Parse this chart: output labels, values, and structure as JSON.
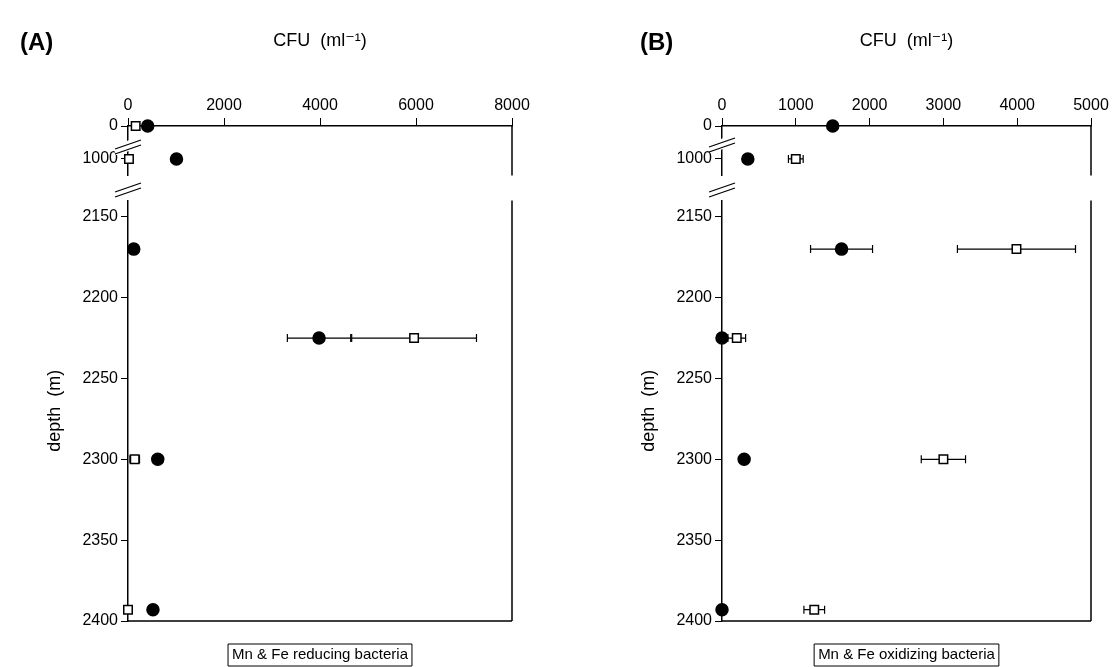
{
  "chart_data": [
    {
      "type": "scatter",
      "title": "(A)",
      "xlabel": "CFU  (ml⁻¹)",
      "xlim": [
        0,
        8000
      ],
      "xticks": [
        0,
        2000,
        4000,
        6000,
        8000
      ],
      "ylim": [
        1500,
        0
      ],
      "yticks": [
        0,
        1000
      ],
      "series": [
        {
          "color": "#000000",
          "marker": "circle",
          "x": [
            410,
            1010
          ],
          "values": [
            0,
            1000
          ],
          "xerrors": [
            null,
            100
          ]
        },
        {
          "color": "#000000",
          "marker": "square",
          "x": [
            160,
            20
          ],
          "values": [
            0,
            1000
          ],
          "xerrors": [
            null,
            null
          ]
        }
      ]
    },
    {
      "type": "scatter",
      "ylabel": "depth  (m)",
      "xlim": [
        0,
        8000
      ],
      "ylim": [
        2400,
        2140
      ],
      "yticks": [
        2150,
        2200,
        2250,
        2300,
        2350,
        2400
      ],
      "tick_labels": "y",
      "annotations": [
        "Mn & Fe reducing bacteria"
      ],
      "series": [
        {
          "color": "#000000",
          "marker": "circle",
          "x": [
            120,
            3980,
            620,
            520
          ],
          "values": [
            2170,
            2225,
            2300,
            2393
          ],
          "xerrors": [
            null,
            660,
            100,
            null
          ]
        },
        {
          "color": "#000000",
          "marker": "square",
          "x": [
            null,
            5960,
            140,
            0
          ],
          "values": [
            null,
            2225,
            2300,
            2393
          ],
          "xerrors": [
            null,
            1300,
            100,
            null
          ]
        }
      ]
    },
    {
      "type": "scatter",
      "title": "(B)",
      "xlabel": "CFU  (ml⁻¹)",
      "xlim": [
        0,
        5000
      ],
      "xticks": [
        0,
        1000,
        2000,
        3000,
        4000,
        5000
      ],
      "ylim": [
        1500,
        0
      ],
      "yticks": [
        0,
        1000
      ],
      "series": [
        {
          "color": "#000000",
          "marker": "circle",
          "x": [
            1500,
            350
          ],
          "values": [
            0,
            1000
          ],
          "xerrors": [
            null,
            null
          ]
        },
        {
          "color": "#000000",
          "marker": "square",
          "x": [
            1000
          ],
          "values": [
            1000
          ],
          "xerrors": [
            100
          ]
        }
      ]
    },
    {
      "type": "scatter",
      "ylabel": "depth  (m)",
      "xlim": [
        0,
        5000
      ],
      "ylim": [
        2400,
        2140
      ],
      "yticks": [
        2150,
        2200,
        2250,
        2300,
        2350,
        2400
      ],
      "tick_labels": "y",
      "annotations": [
        "Mn & Fe oxidizing bacteria"
      ],
      "series": [
        {
          "color": "#000000",
          "marker": "circle",
          "x": [
            1620,
            0,
            300,
            0
          ],
          "values": [
            2170,
            2225,
            2300,
            2393
          ],
          "xerrors": [
            420,
            null,
            null,
            null
          ]
        },
        {
          "color": "#000000",
          "marker": "square",
          "x": [
            3990,
            200,
            3000,
            1250
          ],
          "values": [
            2170,
            2225,
            2300,
            2393
          ],
          "xerrors": [
            800,
            120,
            300,
            140
          ]
        }
      ]
    }
  ]
}
